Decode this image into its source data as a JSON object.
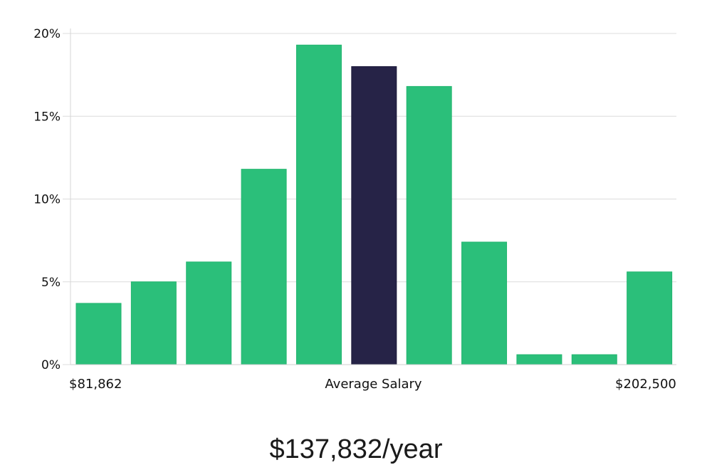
{
  "chart_data": {
    "type": "bar",
    "title": "",
    "xlabel": "Average Salary",
    "ylabel": "",
    "ylim": [
      0,
      20
    ],
    "yticks": [
      "0%",
      "5%",
      "10%",
      "15%",
      "20%"
    ],
    "ytick_values": [
      0,
      5,
      10,
      15,
      20
    ],
    "grid": true,
    "x_min_label": "$81,862",
    "x_max_label": "$202,500",
    "categories": [
      "1",
      "2",
      "3",
      "4",
      "5",
      "6",
      "7",
      "8",
      "9",
      "10",
      "11"
    ],
    "values": [
      3.7,
      5.0,
      6.2,
      11.8,
      19.3,
      18.0,
      16.8,
      7.4,
      0.6,
      0.6,
      5.6
    ],
    "highlight_index": 5,
    "colors": {
      "bar": "#2bbf7a",
      "highlight": "#262347",
      "grid": "#dcdcdc"
    }
  },
  "headline": "$137,832/year"
}
